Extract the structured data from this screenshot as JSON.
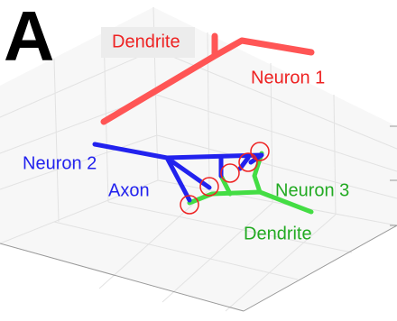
{
  "panel_label": "A",
  "labels": [
    "Dendrite",
    "Neuron 1",
    "Neuron 2",
    "Axon",
    "Neuron 3",
    "Dendrite"
  ]
}
